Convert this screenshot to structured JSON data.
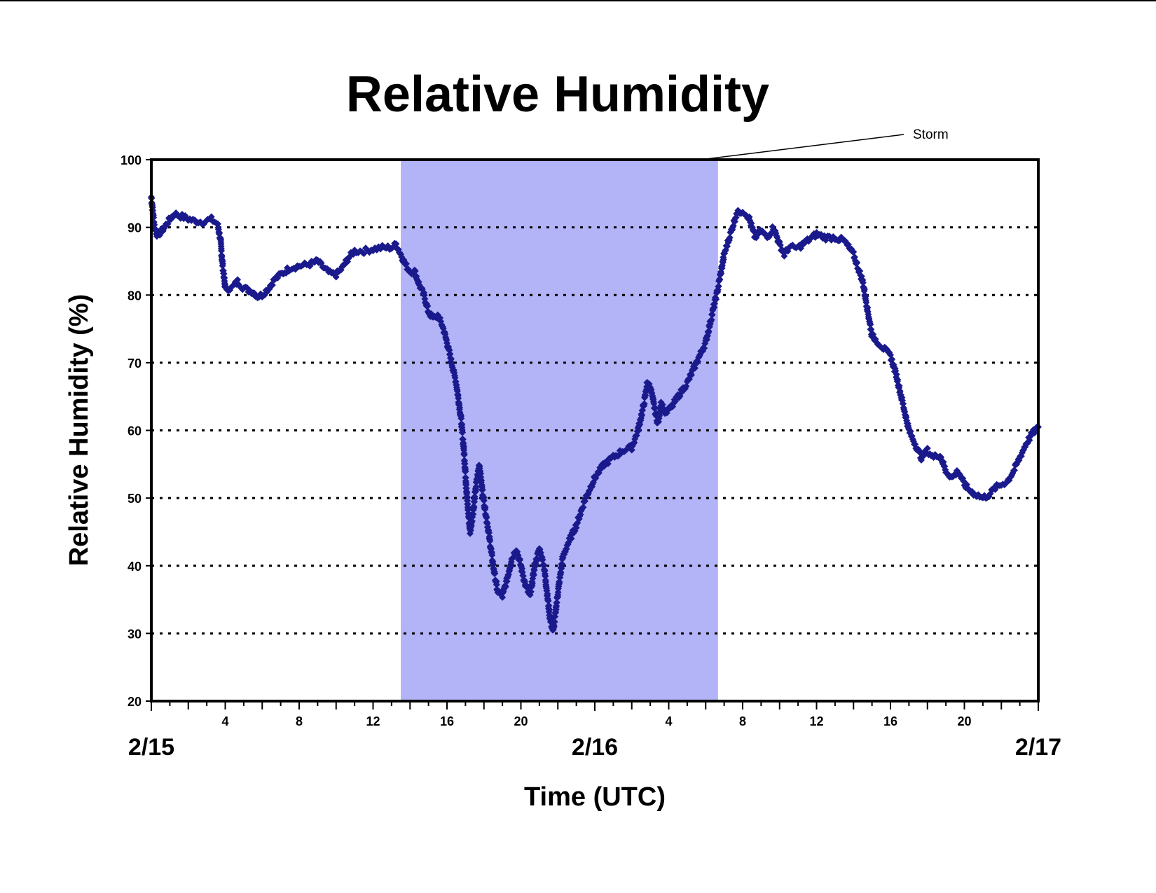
{
  "chart_data": {
    "type": "scatter",
    "title": "Relative Humidity",
    "xlabel": "Time (UTC)",
    "ylabel": "Relative Humidity (%)",
    "ylim": [
      20,
      100
    ],
    "yticks": [
      20,
      30,
      40,
      50,
      60,
      70,
      80,
      90,
      100
    ],
    "xlim": [
      "2/15 00:00",
      "2/17 00:00"
    ],
    "hour_tick_labels": [
      {
        "x": "2/15 04:00",
        "label": "4"
      },
      {
        "x": "2/15 08:00",
        "label": "8"
      },
      {
        "x": "2/15 12:00",
        "label": "12"
      },
      {
        "x": "2/15 16:00",
        "label": "16"
      },
      {
        "x": "2/15 20:00",
        "label": "20"
      },
      {
        "x": "2/16 04:00",
        "label": "4"
      },
      {
        "x": "2/16 08:00",
        "label": "8"
      },
      {
        "x": "2/16 12:00",
        "label": "12"
      },
      {
        "x": "2/16 16:00",
        "label": "16"
      },
      {
        "x": "2/16 20:00",
        "label": "20"
      }
    ],
    "date_labels": [
      {
        "x": "2/15 00:00",
        "label": "2/15"
      },
      {
        "x": "2/16 00:00",
        "label": "2/16"
      },
      {
        "x": "2/17 00:00",
        "label": "2/17"
      }
    ],
    "grid": "horizontal dotted",
    "legend": "none",
    "marker_color": "#1a1a8c",
    "shade_color": "#b3b3f7",
    "shaded_region": {
      "label": "Storm",
      "from": "2/15 13:30",
      "to": "2/16 06:40"
    },
    "series": [
      {
        "points": [
          [
            "2/15 00:00",
            94.5
          ],
          [
            "2/15 00:10",
            90
          ],
          [
            "2/15 00:20",
            88.8
          ],
          [
            "2/15 00:35",
            89.5
          ],
          [
            "2/15 01:00",
            91.2
          ],
          [
            "2/15 01:15",
            92
          ],
          [
            "2/15 01:45",
            91.5
          ],
          [
            "2/15 02:15",
            91
          ],
          [
            "2/15 02:45",
            90.8
          ],
          [
            "2/15 03:15",
            91.2
          ],
          [
            "2/15 03:35",
            90.5
          ],
          [
            "2/15 03:45",
            88
          ],
          [
            "2/15 03:50",
            85
          ],
          [
            "2/15 04:00",
            81
          ],
          [
            "2/15 04:20",
            81
          ],
          [
            "2/15 04:40",
            82
          ],
          [
            "2/15 05:00",
            81
          ],
          [
            "2/15 05:30",
            80.5
          ],
          [
            "2/15 05:45",
            79.8
          ],
          [
            "2/15 06:00",
            80
          ],
          [
            "2/15 06:20",
            81
          ],
          [
            "2/15 06:40",
            82.3
          ],
          [
            "2/15 07:00",
            83
          ],
          [
            "2/15 07:30",
            84
          ],
          [
            "2/15 08:00",
            84.3
          ],
          [
            "2/15 08:30",
            84.5
          ],
          [
            "2/15 09:00",
            85
          ],
          [
            "2/15 09:20",
            84
          ],
          [
            "2/15 09:40",
            83.2
          ],
          [
            "2/15 10:00",
            83
          ],
          [
            "2/15 10:20",
            84
          ],
          [
            "2/15 10:40",
            85.5
          ],
          [
            "2/15 11:00",
            86.5
          ],
          [
            "2/15 11:30",
            86.5
          ],
          [
            "2/15 12:00",
            86.8
          ],
          [
            "2/15 12:30",
            87
          ],
          [
            "2/15 13:00",
            87
          ],
          [
            "2/15 13:15",
            87.5
          ],
          [
            "2/15 13:30",
            86
          ],
          [
            "2/15 13:45",
            84.5
          ],
          [
            "2/15 14:00",
            83.5
          ],
          [
            "2/15 14:15",
            83.5
          ],
          [
            "2/15 14:30",
            81.5
          ],
          [
            "2/15 14:45",
            80
          ],
          [
            "2/15 15:00",
            77.5
          ],
          [
            "2/15 15:15",
            76.5
          ],
          [
            "2/15 15:30",
            77
          ],
          [
            "2/15 15:45",
            75.5
          ],
          [
            "2/15 16:00",
            73
          ],
          [
            "2/15 16:15",
            70
          ],
          [
            "2/15 16:30",
            67
          ],
          [
            "2/15 16:45",
            62
          ],
          [
            "2/15 16:55",
            57
          ],
          [
            "2/15 17:05",
            50
          ],
          [
            "2/15 17:15",
            45
          ],
          [
            "2/15 17:25",
            48
          ],
          [
            "2/15 17:35",
            52
          ],
          [
            "2/15 17:45",
            55
          ],
          [
            "2/15 17:55",
            51
          ],
          [
            "2/15 18:05",
            48
          ],
          [
            "2/15 18:15",
            45
          ],
          [
            "2/15 18:30",
            40
          ],
          [
            "2/15 18:45",
            36
          ],
          [
            "2/15 19:00",
            35.5
          ],
          [
            "2/15 19:15",
            38
          ],
          [
            "2/15 19:30",
            41
          ],
          [
            "2/15 19:45",
            42.5
          ],
          [
            "2/15 20:00",
            40
          ],
          [
            "2/15 20:15",
            37
          ],
          [
            "2/15 20:30",
            35.5
          ],
          [
            "2/15 20:45",
            40
          ],
          [
            "2/15 21:00",
            42.5
          ],
          [
            "2/15 21:15",
            40
          ],
          [
            "2/15 21:25",
            36
          ],
          [
            "2/15 21:35",
            32
          ],
          [
            "2/15 21:45",
            30.3
          ],
          [
            "2/15 22:00",
            36
          ],
          [
            "2/15 22:15",
            41
          ],
          [
            "2/15 22:30",
            43
          ],
          [
            "2/15 23:00",
            46
          ],
          [
            "2/15 23:30",
            50
          ],
          [
            "2/16 00:00",
            53
          ],
          [
            "2/16 00:30",
            55
          ],
          [
            "2/16 01:00",
            56
          ],
          [
            "2/16 01:30",
            57
          ],
          [
            "2/16 02:00",
            57.5
          ],
          [
            "2/16 02:20",
            60
          ],
          [
            "2/16 02:40",
            64
          ],
          [
            "2/16 02:50",
            67
          ],
          [
            "2/16 03:00",
            66.5
          ],
          [
            "2/16 03:15",
            63
          ],
          [
            "2/16 03:25",
            61
          ],
          [
            "2/16 03:35",
            64
          ],
          [
            "2/16 03:50",
            62.5
          ],
          [
            "2/16 04:10",
            63.5
          ],
          [
            "2/16 04:30",
            65
          ],
          [
            "2/16 05:00",
            67
          ],
          [
            "2/16 05:30",
            70
          ],
          [
            "2/16 06:00",
            73
          ],
          [
            "2/16 06:20",
            77
          ],
          [
            "2/16 06:40",
            81
          ],
          [
            "2/16 07:00",
            86
          ],
          [
            "2/16 07:20",
            89
          ],
          [
            "2/16 07:40",
            92
          ],
          [
            "2/16 08:00",
            92.5
          ],
          [
            "2/16 08:20",
            91.5
          ],
          [
            "2/16 08:40",
            88.5
          ],
          [
            "2/16 09:00",
            89.5
          ],
          [
            "2/16 09:20",
            88.5
          ],
          [
            "2/16 09:40",
            90
          ],
          [
            "2/16 10:00",
            87.5
          ],
          [
            "2/16 10:15",
            86
          ],
          [
            "2/16 10:30",
            87
          ],
          [
            "2/16 11:00",
            87
          ],
          [
            "2/16 11:30",
            88
          ],
          [
            "2/16 12:00",
            89
          ],
          [
            "2/16 12:30",
            88.5
          ],
          [
            "2/16 13:00",
            88.5
          ],
          [
            "2/16 13:30",
            88
          ],
          [
            "2/16 14:00",
            86
          ],
          [
            "2/16 14:30",
            82
          ],
          [
            "2/16 14:45",
            78
          ],
          [
            "2/16 15:00",
            74
          ],
          [
            "2/16 15:30",
            72.5
          ],
          [
            "2/16 16:00",
            71
          ],
          [
            "2/16 16:20",
            68
          ],
          [
            "2/16 16:40",
            64
          ],
          [
            "2/16 17:00",
            60
          ],
          [
            "2/16 17:20",
            58
          ],
          [
            "2/16 17:40",
            56
          ],
          [
            "2/16 18:00",
            57
          ],
          [
            "2/16 18:20",
            56
          ],
          [
            "2/16 18:40",
            56.5
          ],
          [
            "2/16 19:00",
            54
          ],
          [
            "2/16 19:20",
            53
          ],
          [
            "2/16 19:40",
            54
          ],
          [
            "2/16 20:00",
            52
          ],
          [
            "2/16 20:20",
            51
          ],
          [
            "2/16 20:40",
            50.5
          ],
          [
            "2/16 21:00",
            50
          ],
          [
            "2/16 21:20",
            50.5
          ],
          [
            "2/16 21:40",
            51.5
          ],
          [
            "2/16 22:00",
            52
          ],
          [
            "2/16 22:20",
            52.5
          ],
          [
            "2/16 22:40",
            54
          ],
          [
            "2/16 23:00",
            56
          ],
          [
            "2/16 23:20",
            58
          ],
          [
            "2/16 23:40",
            59.5
          ],
          [
            "2/17 00:00",
            60.5
          ]
        ]
      }
    ]
  }
}
